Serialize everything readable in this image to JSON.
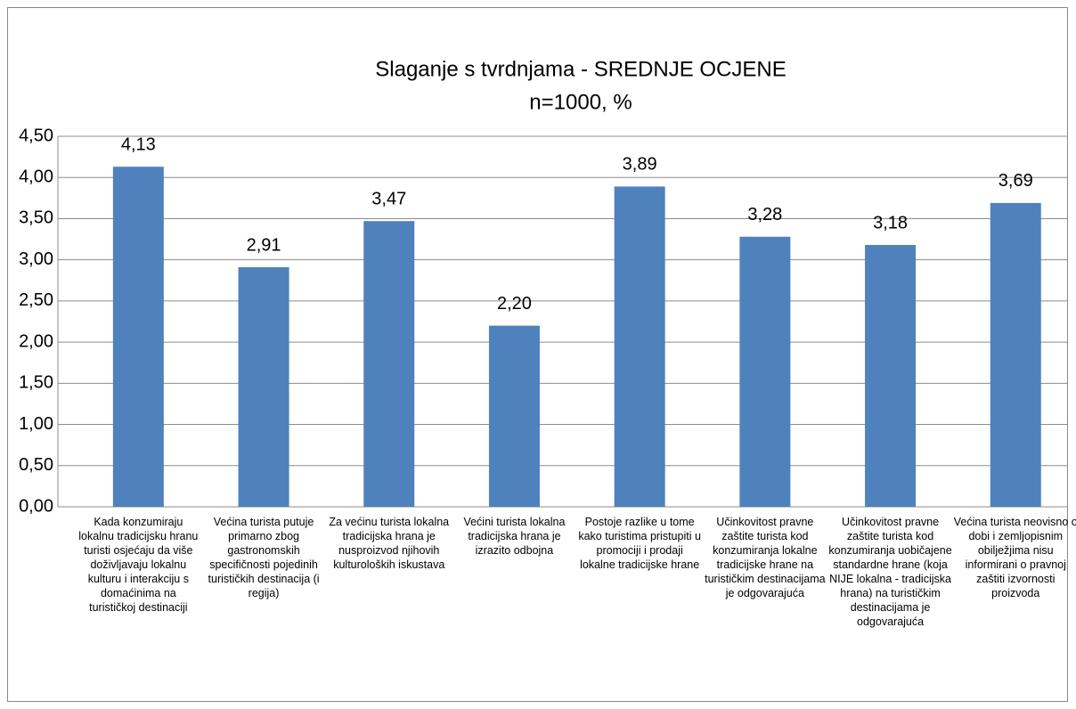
{
  "chart_data": {
    "type": "bar",
    "title": "Slaganje s tvrdnjama  - SREDNJE OCJENE",
    "subtitle": "n=1000, %",
    "categories": [
      "Kada konzumiraju lokalnu tradicijsku hranu turisti osjećaju da više doživljavaju lokalnu kulturu i interakciju s domaćinima na turističkoj destinaciji",
      "Većina turista putuje primarno zbog gastronomskih specifičnosti pojedinih turističkih destinacija (i regija)",
      "Za većinu turista lokalna tradicijska hrana je nusproizvod njihovih kulturoloških iskustava",
      "Većini turista lokalna tradicijska hrana je izrazito odbojna",
      "Postoje razlike u tome kako turistima pristupiti u promociji i prodaji lokalne tradicijske hrane",
      "Učinkovitost pravne zaštite turista kod konzumiranja lokalne tradicijske hrane na turističkim destinacijama je odgovarajuća",
      "Učinkovitost pravne zaštite turista kod konzumiranja uobičajene standardne hrane (koja NIJE lokalna - tradicijska hrana) na turističkim destinacijama je odgovarajuća",
      "Većina turista neovisno o dobi i zemljopisnim obilježjima nisu informirani o pravnoj zaštiti izvornosti proizvoda"
    ],
    "values": [
      4.13,
      2.91,
      3.47,
      2.2,
      3.89,
      3.28,
      3.18,
      3.69
    ],
    "value_labels": [
      "4,13",
      "2,91",
      "3,47",
      "2,20",
      "3,89",
      "3,28",
      "3,18",
      "3,69"
    ],
    "color": "#4f81bd",
    "ylim": [
      0,
      4.5
    ],
    "yticks": [
      {
        "value": 0,
        "label": "0,00"
      },
      {
        "value": 0.5,
        "label": "0,50"
      },
      {
        "value": 1,
        "label": "1,00"
      },
      {
        "value": 1.5,
        "label": "1,50"
      },
      {
        "value": 2,
        "label": "2,00"
      },
      {
        "value": 2.5,
        "label": "2,50"
      },
      {
        "value": 3,
        "label": "3,00"
      },
      {
        "value": 3.5,
        "label": "3,50"
      },
      {
        "value": 4,
        "label": "4,00"
      },
      {
        "value": 4.5,
        "label": "4,50"
      }
    ],
    "grid": true
  }
}
